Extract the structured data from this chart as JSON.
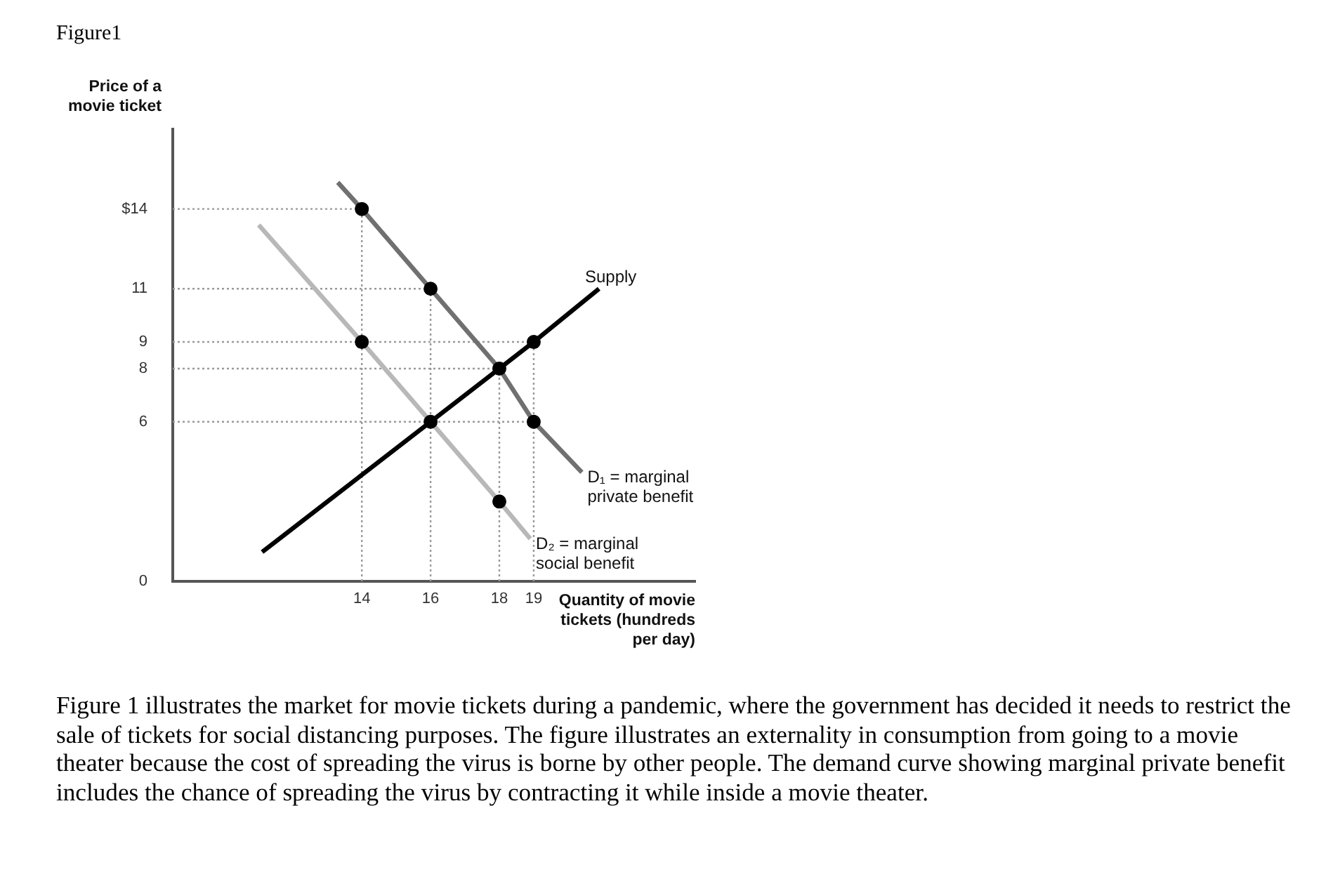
{
  "chart_data": {
    "type": "line",
    "title": "Figure1",
    "xlabel": "Quantity of movie tickets (hundreds per day)",
    "ylabel": "Price of a movie ticket",
    "xlim": [
      8.5,
      23.7
    ],
    "xticks": [
      14,
      16,
      18,
      19
    ],
    "ylim": [
      0,
      17
    ],
    "yticks": [
      0,
      6,
      8,
      9,
      11,
      {
        "value": 14,
        "label": "$14"
      }
    ],
    "grid": false,
    "legend": false,
    "marker": "none",
    "line_style": "solid",
    "series": [
      {
        "name": "D₁ = marginal private benefit",
        "color": "#707070",
        "x": [
          13.3,
          14,
          16,
          18,
          19,
          20.4
        ],
        "values": [
          15,
          14,
          11,
          8,
          6,
          4.1
        ]
      },
      {
        "name": "D₂ = marginal social benefit",
        "color": "#b8b8b8",
        "x": [
          11,
          14,
          16,
          18,
          18.9
        ],
        "values": [
          13.4,
          9,
          6,
          3,
          1.6
        ]
      },
      {
        "name": "Supply",
        "color": "#000000",
        "x": [
          11.1,
          16,
          18,
          19,
          20.9
        ],
        "values": [
          1.1,
          6,
          8,
          9,
          11
        ]
      },
      {
        "type": "scatter",
        "marker": "circle",
        "color": "#000000",
        "x": [
          14,
          16,
          14,
          18,
          19,
          16,
          19,
          18
        ],
        "values": [
          14,
          11,
          9,
          8,
          9,
          6,
          6,
          3
        ]
      }
    ],
    "ref_lines": [
      {
        "axis": "y",
        "value": 14,
        "color": "#9a9a9a",
        "line_style": "dotted"
      },
      {
        "axis": "y",
        "value": 11,
        "color": "#9a9a9a",
        "line_style": "dotted"
      },
      {
        "axis": "y",
        "value": 9,
        "color": "#9a9a9a",
        "line_style": "dotted"
      },
      {
        "axis": "y",
        "value": 8,
        "color": "#9a9a9a",
        "line_style": "dotted"
      },
      {
        "axis": "y",
        "value": 6,
        "color": "#9a9a9a",
        "line_style": "dotted"
      },
      {
        "axis": "x",
        "value": 14,
        "color": "#9a9a9a",
        "line_style": "dotted"
      },
      {
        "axis": "x",
        "value": 16,
        "color": "#9a9a9a",
        "line_style": "dotted"
      },
      {
        "axis": "x",
        "value": 18,
        "color": "#9a9a9a",
        "line_style": "dotted"
      },
      {
        "axis": "x",
        "value": 19,
        "color": "#9a9a9a",
        "line_style": "dotted"
      }
    ],
    "annotations": [
      "Figure 1 illustrates the market for movie tickets during a pandemic, where the government has decided it needs to restrict the sale of tickets for social distancing purposes. The figure illustrates an externality in consumption from going to a movie theater because the cost of spreading the virus is borne by other people. The demand curve showing marginal private benefit includes the chance of spreading the virus by contracting it while inside a movie theater."
    ]
  }
}
